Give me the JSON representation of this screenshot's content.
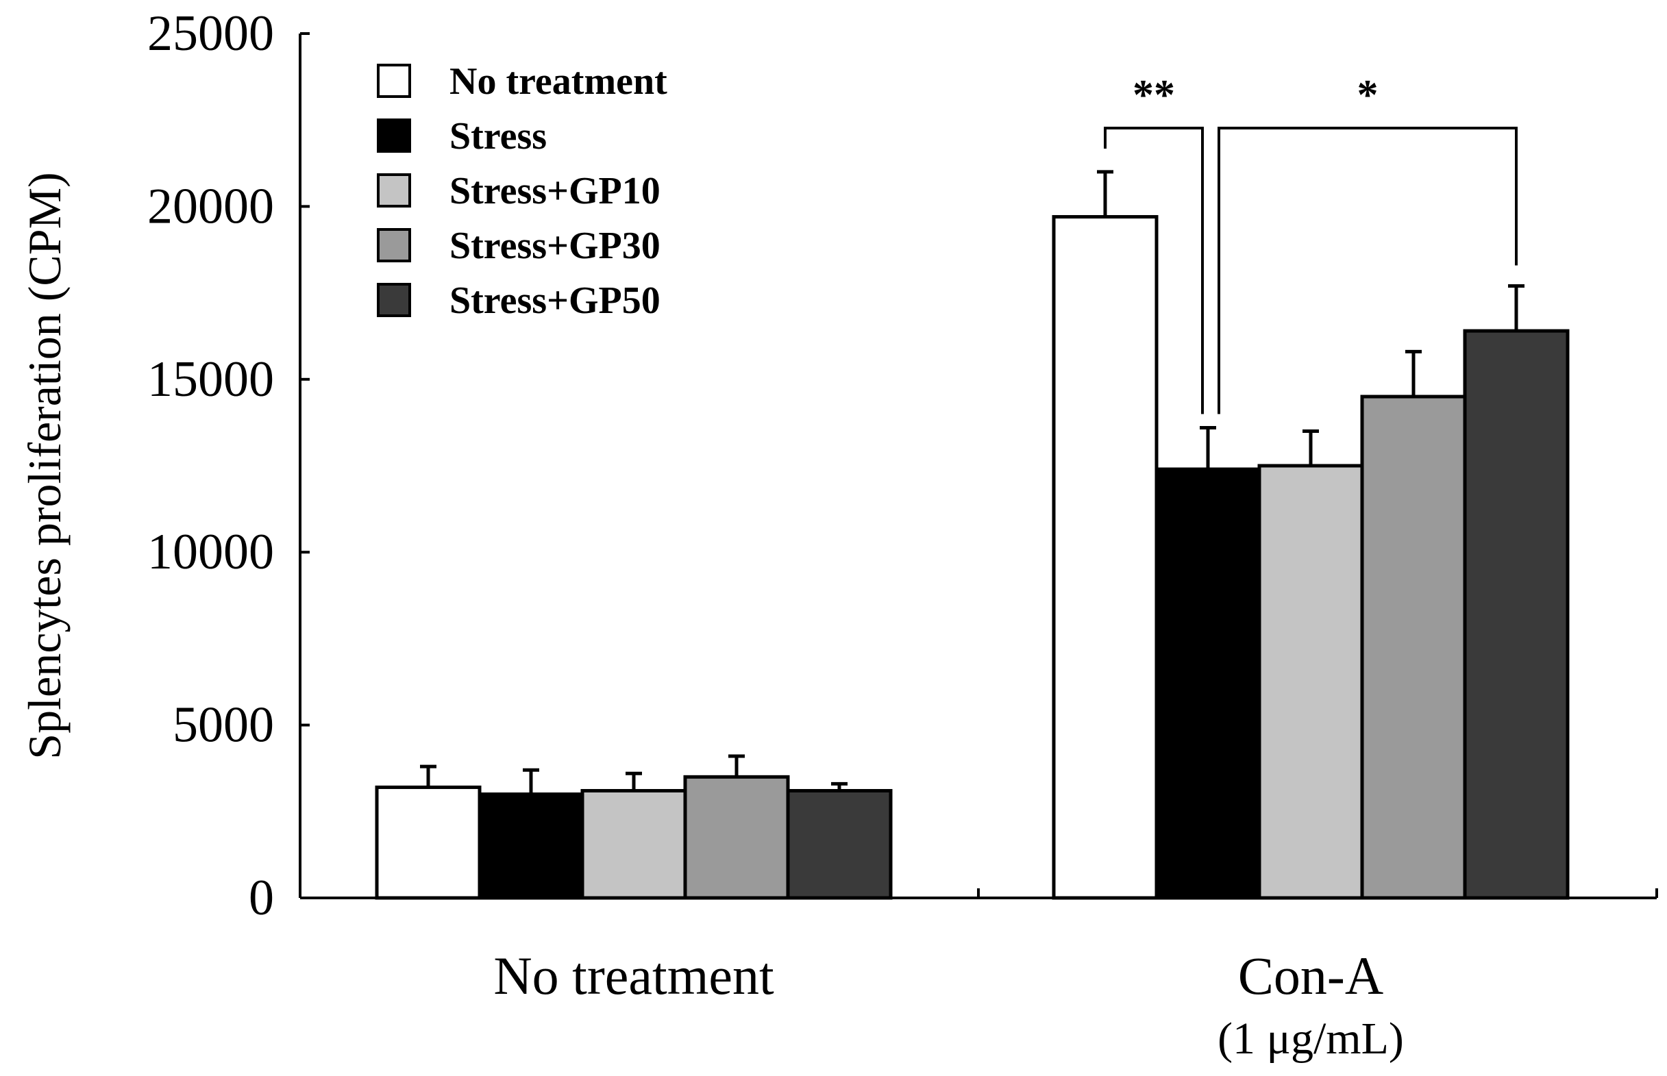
{
  "chart_data": {
    "type": "bar",
    "ylabel": "Splencytes proliferation (CPM)",
    "xlabel": "",
    "ylim": [
      0,
      25000
    ],
    "yticks": [
      0,
      5000,
      10000,
      15000,
      20000,
      25000
    ],
    "grid": false,
    "legend_position": "top-left",
    "categories": [
      {
        "label": "No treatment",
        "sublabel": ""
      },
      {
        "label": "Con-A",
        "sublabel": "(1 μg/mL)"
      }
    ],
    "series": [
      {
        "name": "No treatment",
        "color": "#ffffff",
        "values": [
          3200,
          19700
        ],
        "errors": [
          600,
          1300
        ]
      },
      {
        "name": "Stress",
        "color": "#000000",
        "values": [
          3000,
          12400
        ],
        "errors": [
          700,
          1200
        ]
      },
      {
        "name": "Stress+GP10",
        "color": "#c4c4c4",
        "values": [
          3100,
          12500
        ],
        "errors": [
          500,
          1000
        ]
      },
      {
        "name": "Stress+GP30",
        "color": "#9a9a9a",
        "values": [
          3500,
          14500
        ],
        "errors": [
          600,
          1300
        ]
      },
      {
        "name": "Stress+GP50",
        "color": "#3a3a3a",
        "values": [
          3100,
          16400
        ],
        "errors": [
          200,
          1300
        ]
      }
    ],
    "annotations": [
      {
        "label": "**",
        "category": 1,
        "from_series": 0,
        "to_series": 1
      },
      {
        "label": "*",
        "category": 1,
        "from_series": 1,
        "to_series": 4
      }
    ]
  }
}
